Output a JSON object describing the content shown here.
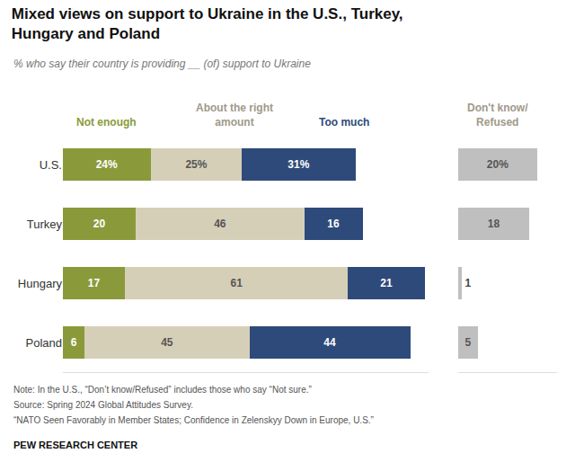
{
  "chart_data": [
    {
      "type": "bar",
      "orientation": "horizontal",
      "stacked": true,
      "title": "Mixed views on support to Ukraine in the U.S., Turkey,\nHungary and Poland",
      "subtitle": "% who say their country is providing __ (of) support to Ukraine",
      "annotations": [
        "Note: In the U.S., “Don’t know/Refused” includes those who say “Not sure.”",
        "Source: Spring 2024 Global Attitudes Survey.",
        "“NATO Seen Favorably in Member States; Confidence in Zelenskyy Down in Europe, U.S.”",
        "PEW RESEARCH CENTER"
      ],
      "categories": [
        "U.S.",
        "Turkey",
        "Hungary",
        "Poland"
      ],
      "xlim": [
        0,
        100
      ],
      "tick_labels": "y",
      "data_labels": true,
      "series": [
        {
          "name": "Not enough",
          "color": "#8a9a3a",
          "values": [
            24,
            20,
            17,
            6
          ],
          "value_labels": [
            "24%",
            "20",
            "17",
            "6"
          ]
        },
        {
          "name": "About the right\namount",
          "color": "#d6cfb8",
          "values": [
            25,
            46,
            61,
            45
          ],
          "value_labels": [
            "25%",
            "46",
            "61",
            "45"
          ]
        },
        {
          "name": "Too much",
          "color": "#2e4a7a",
          "values": [
            31,
            16,
            21,
            44
          ],
          "value_labels": [
            "31%",
            "16",
            "21",
            "44"
          ]
        }
      ]
    },
    {
      "type": "bar",
      "orientation": "horizontal",
      "categories": [
        "U.S.",
        "Turkey",
        "Hungary",
        "Poland"
      ],
      "xlim": [
        0,
        25
      ],
      "tick_labels": false,
      "data_labels": true,
      "series": [
        {
          "name": "Don't know/\nRefused",
          "color": "#c0bfbf",
          "values": [
            20,
            18,
            1,
            5
          ],
          "value_labels": [
            "20%",
            "18",
            "1",
            "5"
          ]
        }
      ]
    }
  ]
}
